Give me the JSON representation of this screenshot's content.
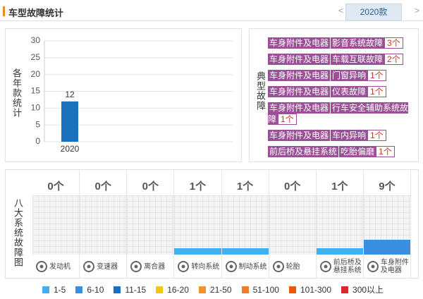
{
  "header": {
    "title": "车型故障统计",
    "tab": "2020款",
    "prev": "<",
    "next": ">"
  },
  "chart_data": [
    {
      "type": "bar",
      "ylabel": "各年款统计",
      "categories": [
        "2020"
      ],
      "values": [
        12
      ],
      "color": "#1a72bf",
      "ylim": [
        0,
        30
      ],
      "yticks": [
        0,
        5,
        10,
        15,
        20,
        25,
        30
      ],
      "grid": true
    },
    {
      "type": "system",
      "title": "八大系统故障图",
      "categories": [
        "发动机",
        "变速器",
        "离合器",
        "转向系统",
        "制动系统",
        "轮胎",
        "前后桥及悬挂系统",
        "车身附件及电器"
      ],
      "values": [
        0,
        0,
        0,
        1,
        1,
        0,
        1,
        9
      ],
      "value_labels": [
        "0个",
        "0个",
        "0个",
        "1个",
        "1个",
        "0个",
        "1个",
        "9个"
      ],
      "colors": [
        "#3fb1f0",
        "#3fb1f0",
        "#3fb1f0",
        "#3fb1f0",
        "#3fb1f0",
        "#3fb1f0",
        "#3fb1f0",
        "#3a8fe0"
      ],
      "legend": [
        {
          "label": "1-5",
          "color": "#3fb1f0"
        },
        {
          "label": "6-10",
          "color": "#3a8fe0"
        },
        {
          "label": "11-15",
          "color": "#1a6fc0"
        },
        {
          "label": "16-20",
          "color": "#f5c518"
        },
        {
          "label": "21-50",
          "color": "#f0932b"
        },
        {
          "label": "51-100",
          "color": "#f07b2a"
        },
        {
          "label": "101-300",
          "color": "#e8590c"
        },
        {
          "label": "300以上",
          "color": "#e0242b"
        }
      ]
    }
  ],
  "typical_faults": {
    "title": "典型故障",
    "items": [
      {
        "category": "车身附件及电器",
        "fault": "影音系统故障",
        "count": "3个"
      },
      {
        "category": "车身附件及电器",
        "fault": "车载互联故障",
        "count": "2个"
      },
      {
        "category": "车身附件及电器",
        "fault": "门窗异响",
        "count": "1个"
      },
      {
        "category": "车身附件及电器",
        "fault": "仪表故障",
        "count": "1个"
      },
      {
        "category": "车身附件及电器",
        "fault": "行车安全辅助系统故障",
        "count": "1个"
      },
      {
        "category": "车身附件及电器",
        "fault": "车内异响",
        "count": "1个"
      },
      {
        "category": "前后桥及悬挂系统",
        "fault": "吃胎偏磨",
        "count": "1个"
      }
    ]
  }
}
